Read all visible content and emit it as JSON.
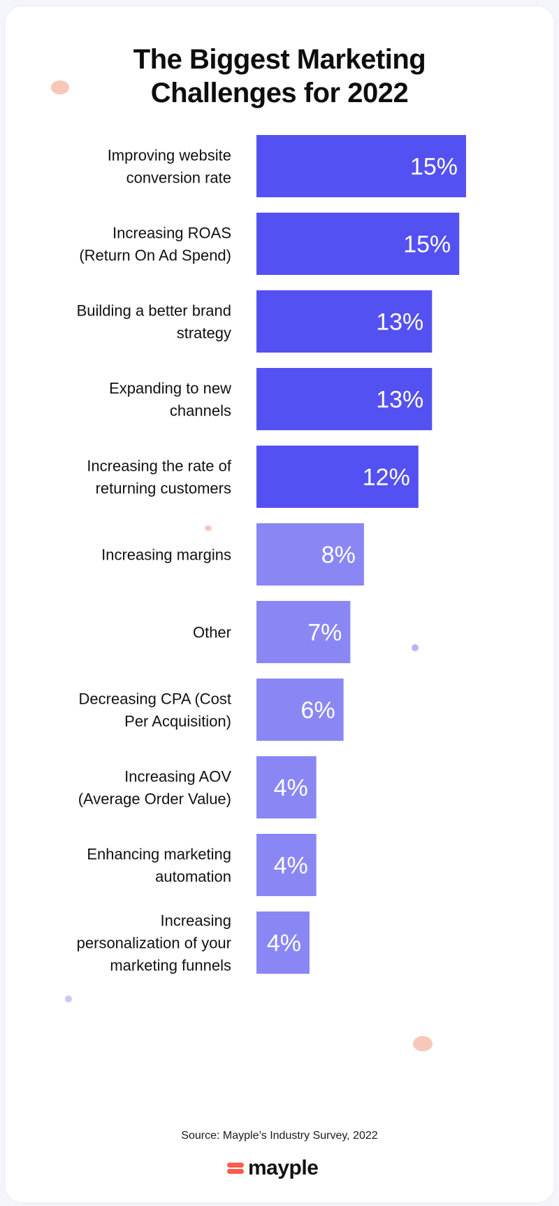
{
  "title_lines": [
    "The Biggest Marketing",
    "Challenges for 2022"
  ],
  "source": "Source: Mayple’s Industry Survey, 2022",
  "logo": "mayple",
  "colors": {
    "bar_primary": "#5451f2",
    "bar_secondary": "#8a87f5",
    "label_text": "#111111",
    "value_text": "#ffffff",
    "deco_peach": "#f7c8b8",
    "deco_lilac": "#b7b5f5",
    "brand_red": "#ff5a4a"
  },
  "chart_data": {
    "type": "bar",
    "orientation": "horizontal",
    "title": "The Biggest Marketing Challenges for 2022",
    "categories": [
      [
        "Improving website",
        "conversion rate"
      ],
      [
        "Increasing ROAS",
        "(Return On Ad Spend)"
      ],
      [
        "Building a better brand",
        "strategy"
      ],
      [
        "Expanding to new",
        "channels"
      ],
      [
        "Increasing the rate of",
        "returning customers"
      ],
      [
        "Increasing margins"
      ],
      [
        "Other"
      ],
      [
        "Decreasing CPA (Cost",
        "Per Acquisition)"
      ],
      [
        "Increasing AOV",
        "(Average Order Value)"
      ],
      [
        "Enhancing marketing",
        "automation"
      ],
      [
        "Increasing",
        "personalization of your",
        "marketing funnels"
      ]
    ],
    "values": [
      15.4,
      14.9,
      12.9,
      12.9,
      11.9,
      7.9,
      6.9,
      6.4,
      4.4,
      4.4,
      3.9
    ],
    "value_labels": [
      "15%",
      "15%",
      "13%",
      "13%",
      "12%",
      "8%",
      "7%",
      "6%",
      "4%",
      "4%",
      "4%"
    ],
    "highlight_top_n": 5,
    "xlim": [
      0,
      15.4
    ],
    "grid": false,
    "legend": "none"
  }
}
